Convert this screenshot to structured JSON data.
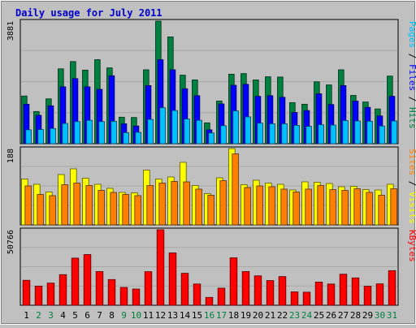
{
  "chart_data": {
    "type": "bar",
    "title": "Daily usage for July 2011",
    "days": [
      "1",
      "2",
      "3",
      "4",
      "5",
      "6",
      "7",
      "8",
      "9",
      "10",
      "11",
      "12",
      "13",
      "14",
      "15",
      "16",
      "17",
      "18",
      "19",
      "20",
      "21",
      "22",
      "23",
      "24",
      "25",
      "26",
      "27",
      "28",
      "29",
      "30",
      "31"
    ],
    "weekend_days": [
      "2",
      "3",
      "9",
      "10",
      "16",
      "17",
      "23",
      "24",
      "30",
      "31"
    ],
    "colors": {
      "title": "#0000cc",
      "background": "#c0c0c0",
      "hits": "#008040",
      "files": "#0000ff",
      "pages": "#00c0ff",
      "visits": "#ffff00",
      "sites": "#ff8000",
      "kbytes": "#ff0000",
      "weekday_label": "#000000",
      "weekend_label": "#008040"
    },
    "panels": [
      {
        "id": "hits-files-pages",
        "ymax_label": "3881",
        "ymax": 3881,
        "legend": [
          {
            "text": "Pages",
            "color": "#00c0ff"
          },
          {
            "text": " / ",
            "color": "#000000"
          },
          {
            "text": "Files",
            "color": "#0000ff"
          },
          {
            "text": " / ",
            "color": "#000000"
          },
          {
            "text": "Hits",
            "color": "#008040"
          }
        ],
        "series": [
          {
            "name": "Hits",
            "color": "#008040",
            "values": [
              1510,
              1020,
              1420,
              2370,
              2600,
              2330,
              2660,
              2400,
              840,
              830,
              2340,
              3881,
              3380,
              2170,
              2020,
              660,
              1350,
              2200,
              2220,
              2020,
              2120,
              2110,
              1300,
              1250,
              1960,
              1860,
              2340,
              1530,
              1320,
              1100,
              2140
            ]
          },
          {
            "name": "Files",
            "color": "#0000ff",
            "values": [
              1250,
              900,
              1200,
              1800,
              2060,
              1800,
              1720,
              2150,
              630,
              560,
              1840,
              2660,
              2340,
              1740,
              1520,
              440,
              1260,
              1850,
              1880,
              1500,
              1520,
              1470,
              990,
              1050,
              1580,
              1240,
              1840,
              1350,
              1150,
              880,
              1500
            ]
          },
          {
            "name": "Pages",
            "color": "#00c0ff",
            "values": [
              440,
              450,
              480,
              640,
              700,
              740,
              700,
              710,
              350,
              360,
              770,
              1140,
              1050,
              780,
              740,
              340,
              570,
              1040,
              850,
              650,
              630,
              630,
              580,
              550,
              600,
              590,
              730,
              720,
              710,
              560,
              720
            ]
          }
        ]
      },
      {
        "id": "visits-sites",
        "ymax_label": "188",
        "ymax": 188,
        "legend": [
          {
            "text": "Sites",
            "color": "#ff8000"
          },
          {
            "text": " / ",
            "color": "#000000"
          },
          {
            "text": "Visits",
            "color": "#ffff00"
          }
        ],
        "series": [
          {
            "name": "Visits",
            "color": "#ffff00",
            "values": [
              113,
              100,
              81,
              124,
              138,
              115,
              100,
              90,
              80,
              79,
              135,
              113,
              118,
              154,
              97,
              77,
              116,
              188,
              99,
              110,
              103,
              100,
              86,
              106,
              105,
              102,
              94,
              95,
              87,
              86,
              100
            ]
          },
          {
            "name": "Sites",
            "color": "#ff8000",
            "values": [
              96,
              75,
              72,
              99,
              103,
              97,
              85,
              80,
              75,
              72,
              97,
              103,
              107,
              106,
              88,
              73,
              109,
              175,
              92,
              96,
              94,
              88,
              81,
              88,
              97,
              87,
              85,
              89,
              80,
              73,
              89
            ]
          }
        ]
      },
      {
        "id": "kbytes",
        "ymax_label": "50766",
        "ymax": 50766,
        "legend": [
          {
            "text": "KBytes",
            "color": "#ff0000"
          }
        ],
        "series": [
          {
            "name": "KBytes",
            "color": "#ff0000",
            "values": [
              16800,
              12900,
              14900,
              20600,
              31700,
              34100,
              22700,
              17300,
              12000,
              10900,
              22600,
              50766,
              35200,
              21500,
              14300,
              5300,
              11500,
              31900,
              22700,
              19800,
              16600,
              19300,
              9000,
              8800,
              15600,
              14300,
              20900,
              18400,
              12800,
              14400,
              23300
            ]
          }
        ]
      }
    ]
  }
}
